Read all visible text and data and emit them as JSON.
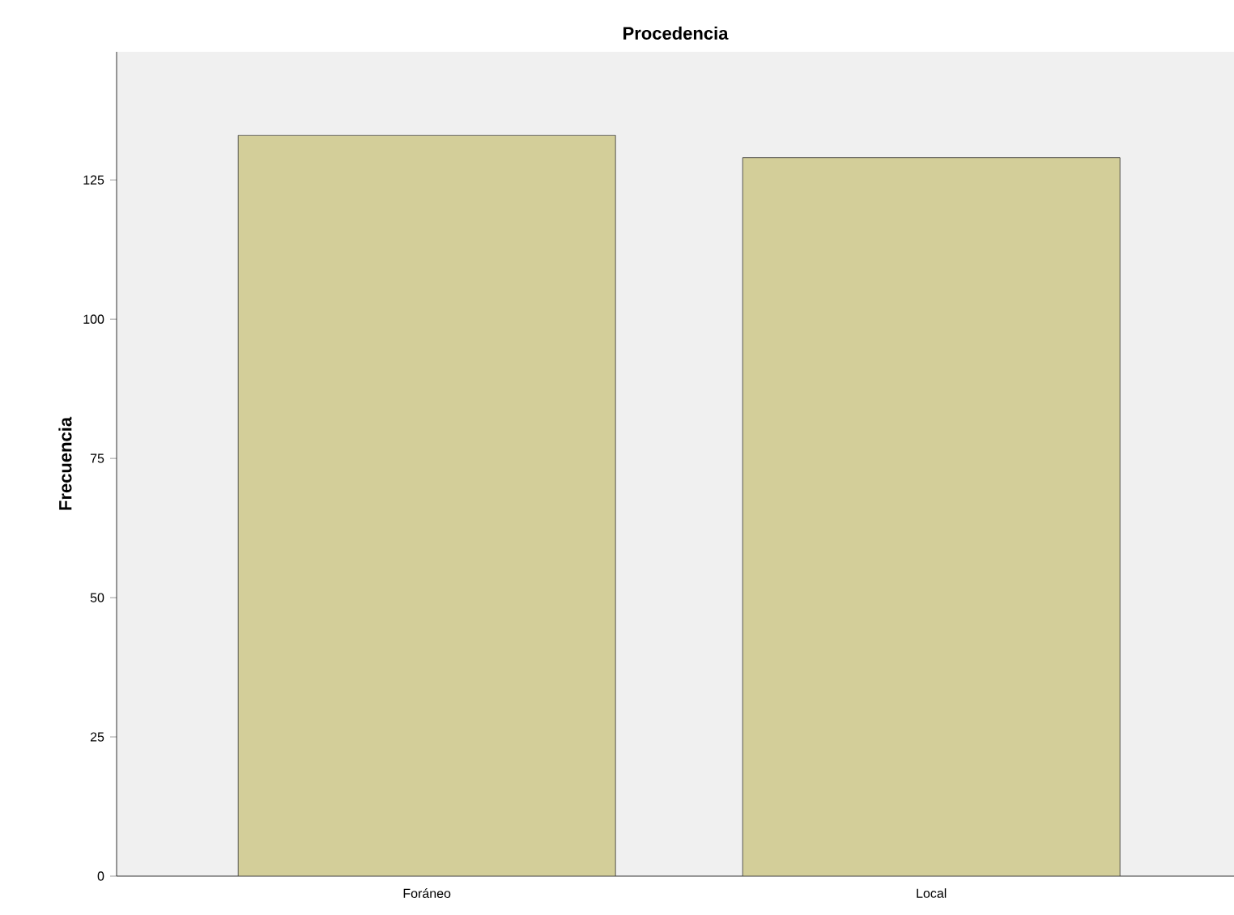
{
  "chart_data": {
    "type": "bar",
    "title": "Procedencia",
    "ylabel": "Frecuencia",
    "categories": [
      "Foráneo",
      "Local"
    ],
    "values": [
      133,
      129
    ],
    "color": "#d3ce99",
    "ylim": [
      0,
      148
    ],
    "yticks": [
      0,
      25,
      50,
      75,
      100,
      125
    ],
    "grid": false
  }
}
